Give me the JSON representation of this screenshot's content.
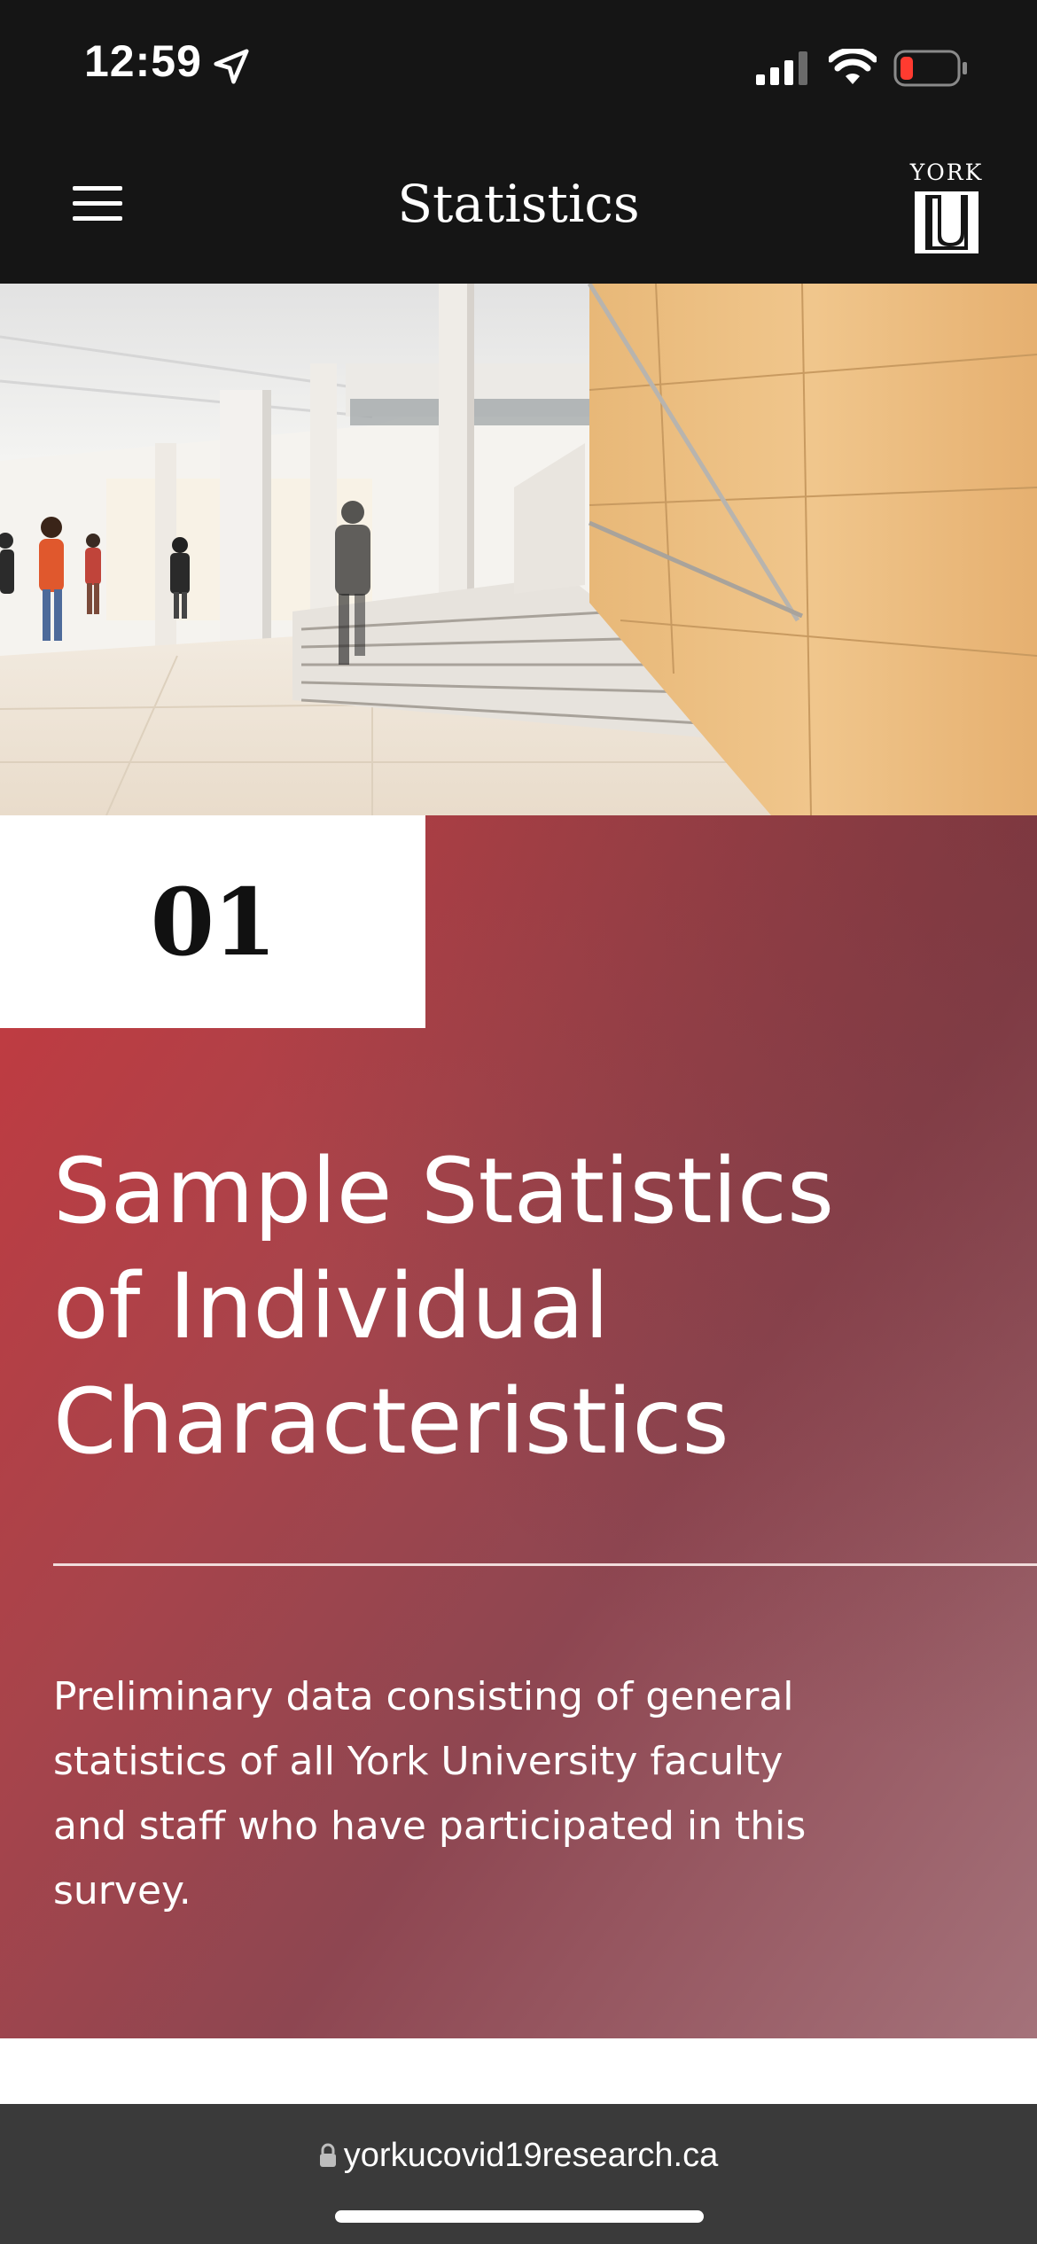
{
  "status_bar": {
    "time": "12:59",
    "icons": [
      "location-arrow-icon",
      "cellular-signal-icon",
      "wifi-icon",
      "battery-low-icon"
    ]
  },
  "nav": {
    "menu_icon": "hamburger-menu-icon",
    "title": "Statistics",
    "logo_text": "YORK",
    "logo_mark": "U"
  },
  "hero": {
    "description": "campus-atrium-photo"
  },
  "section": {
    "number": "01",
    "heading_lines": [
      "Sample Statistics",
      "of Individual",
      "Characteristics"
    ],
    "description": "Preliminary data consisting of general statistics of all York University faculty and staff who have participated in this survey.",
    "accent_color": "#c5393f"
  },
  "browser": {
    "url": "yorkucovid19research.ca",
    "lock_icon": "lock-icon"
  }
}
